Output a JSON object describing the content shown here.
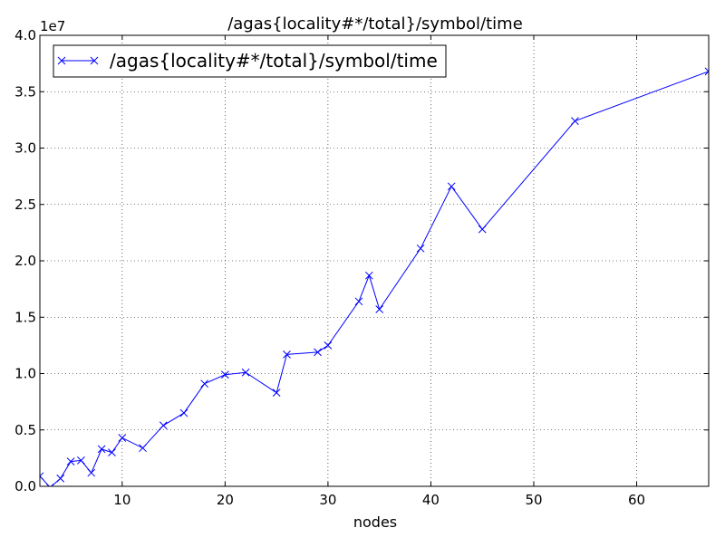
{
  "chart_data": {
    "type": "line",
    "title": "/agas{locality#*/total}/symbol/time",
    "xlabel": "nodes",
    "ylabel": "",
    "y_scale_label": "1e7",
    "xlim": [
      2,
      67
    ],
    "ylim": [
      0,
      40000000
    ],
    "x_ticks": [
      10,
      20,
      30,
      40,
      50,
      60
    ],
    "x_tick_labels": [
      "10",
      "20",
      "30",
      "40",
      "50",
      "60"
    ],
    "y_ticks": [
      0,
      5000000,
      10000000,
      15000000,
      20000000,
      25000000,
      30000000,
      35000000,
      40000000
    ],
    "y_tick_labels": [
      "0.0",
      "0.5",
      "1.0",
      "1.5",
      "2.0",
      "2.5",
      "3.0",
      "3.5",
      "4.0"
    ],
    "grid": true,
    "legend_position": "top-left",
    "color": "#0000ff",
    "marker": "x",
    "series": [
      {
        "name": "/agas{locality#*/total}/symbol/time",
        "x": [
          2,
          3,
          4,
          5,
          6,
          7,
          8,
          9,
          10,
          12,
          14,
          16,
          18,
          20,
          22,
          25,
          26,
          29,
          30,
          33,
          34,
          35,
          39,
          42,
          45,
          54,
          67
        ],
        "y": [
          900000,
          -100000,
          700000,
          2200000,
          2300000,
          1200000,
          3300000,
          3000000,
          4300000,
          3400000,
          5400000,
          6500000,
          9100000,
          9900000,
          10100000,
          8300000,
          11700000,
          11900000,
          12500000,
          16400000,
          18700000,
          15700000,
          21100000,
          26600000,
          22800000,
          32400000,
          36800000
        ]
      }
    ]
  }
}
